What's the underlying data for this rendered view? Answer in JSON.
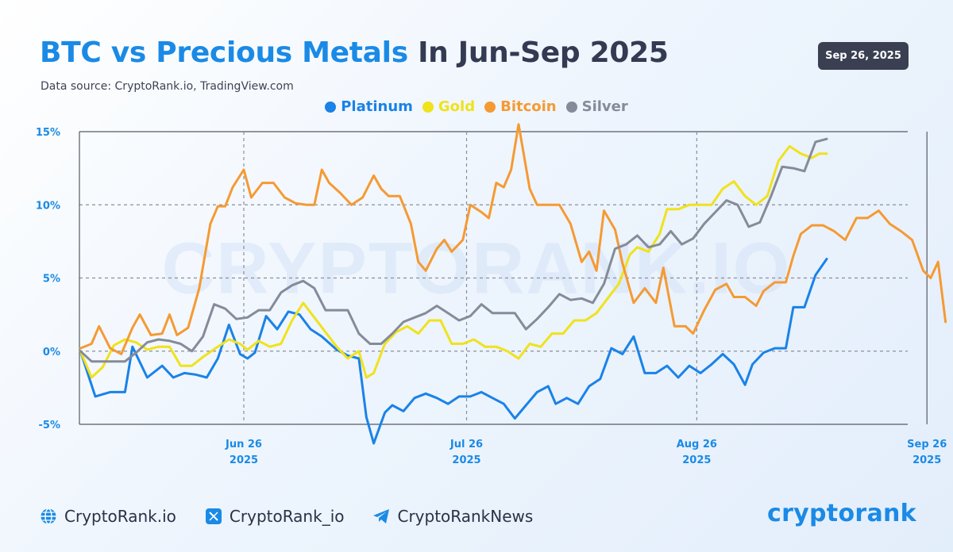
{
  "header": {
    "title_highlight": "BTC vs Precious Metals",
    "title_rest": " In Jun-Sep 2025",
    "subtitle": "Data source: CryptoRank.io, TradingView.com",
    "date_badge": "Sep 26, 2025"
  },
  "watermark": "CRYPTORANK.IO",
  "footer": {
    "website": "CryptoRank.io",
    "x_handle": "CryptoRank_io",
    "telegram": "CryptoRankNews",
    "brand": "cryptorank"
  },
  "chart_data": {
    "type": "line",
    "title": "BTC vs Precious Metals In Jun-Sep 2025",
    "xlabel": "",
    "ylabel": "",
    "ylim": [
      -5,
      15
    ],
    "x_ticks": [
      {
        "day": 0,
        "label_top": "Jun 26",
        "label_bottom": "2025"
      },
      {
        "day": 30,
        "label_top": "Jul 26",
        "label_bottom": "2025"
      },
      {
        "day": 61,
        "label_top": "Aug 26",
        "label_bottom": "2025"
      },
      {
        "day": 92,
        "label_top": "Sep 26",
        "label_bottom": "2025"
      }
    ],
    "y_ticks": [
      {
        "value": 15,
        "label": "15%"
      },
      {
        "value": 10,
        "label": "10%"
      },
      {
        "value": 5,
        "label": "5%"
      },
      {
        "value": 0,
        "label": "0%"
      },
      {
        "value": -5,
        "label": "-5%"
      }
    ],
    "grid": true,
    "legend": "top-center",
    "series": [
      {
        "name": "Platinum",
        "color": "#1a82e8",
        "points": [
          [
            -22,
            0
          ],
          [
            -20,
            -3.1
          ],
          [
            -18,
            -2.8
          ],
          [
            -16,
            -2.8
          ],
          [
            -15,
            0.3
          ],
          [
            -13,
            -1.8
          ],
          [
            -11,
            -1
          ],
          [
            -9.5,
            -1.8
          ],
          [
            -8,
            -1.5
          ],
          [
            -6.5,
            -1.6
          ],
          [
            -5,
            -1.8
          ],
          [
            -3.5,
            -0.5
          ],
          [
            -2,
            1.8
          ],
          [
            -0.5,
            -0.2
          ],
          [
            0.5,
            -0.5
          ],
          [
            1.5,
            -0.1
          ],
          [
            3,
            2.4
          ],
          [
            4.5,
            1.5
          ],
          [
            6,
            2.7
          ],
          [
            7.5,
            2.5
          ],
          [
            9,
            1.5
          ],
          [
            10.5,
            1
          ],
          [
            12.5,
            0.1
          ],
          [
            14,
            -0.3
          ],
          [
            15.5,
            -0.5
          ],
          [
            16.5,
            -4.5
          ],
          [
            17.5,
            -6.3
          ],
          [
            19,
            -4.2
          ],
          [
            20,
            -3.7
          ],
          [
            21.5,
            -4.1
          ],
          [
            23,
            -3.2
          ],
          [
            24.5,
            -2.9
          ],
          [
            26,
            -3.2
          ],
          [
            27.5,
            -3.6
          ],
          [
            29,
            -3.1
          ],
          [
            30.5,
            -3.1
          ],
          [
            32,
            -2.8
          ],
          [
            33.5,
            -3.2
          ],
          [
            35,
            -3.6
          ],
          [
            36.5,
            -4.6
          ],
          [
            38,
            -3.7
          ],
          [
            39.5,
            -2.8
          ],
          [
            41,
            -2.4
          ],
          [
            42,
            -3.6
          ],
          [
            43.5,
            -3.2
          ],
          [
            45,
            -3.6
          ],
          [
            46.5,
            -2.4
          ],
          [
            48,
            -1.9
          ],
          [
            49.5,
            0.2
          ],
          [
            51,
            -0.2
          ],
          [
            52.5,
            1
          ],
          [
            54,
            -1.5
          ],
          [
            55.5,
            -1.5
          ],
          [
            57,
            -1
          ],
          [
            58.5,
            -1.8
          ],
          [
            60,
            -1
          ],
          [
            61.5,
            -1.5
          ],
          [
            63,
            -0.9
          ],
          [
            64.5,
            -0.2
          ],
          [
            66,
            -0.9
          ],
          [
            67.5,
            -2.3
          ],
          [
            68.5,
            -0.9
          ],
          [
            70,
            -0.1
          ],
          [
            71.5,
            0.2
          ],
          [
            73,
            0.2
          ],
          [
            74,
            3
          ],
          [
            75.5,
            3
          ],
          [
            77,
            5.2
          ],
          [
            78.5,
            6.3
          ]
        ]
      },
      {
        "name": "Gold",
        "color": "#f0e21c",
        "points": [
          [
            -22,
            0
          ],
          [
            -20.5,
            -1.8
          ],
          [
            -19,
            -1.1
          ],
          [
            -17.5,
            0.4
          ],
          [
            -16,
            0.8
          ],
          [
            -14.5,
            0.6
          ],
          [
            -13,
            0.1
          ],
          [
            -11.5,
            0.3
          ],
          [
            -10,
            0.3
          ],
          [
            -8.5,
            -1
          ],
          [
            -7,
            -1
          ],
          [
            -5.5,
            -0.4
          ],
          [
            -3.5,
            0.3
          ],
          [
            -2,
            0.8
          ],
          [
            -0.5,
            0.5
          ],
          [
            0.5,
            0.1
          ],
          [
            2,
            0.7
          ],
          [
            3.5,
            0.3
          ],
          [
            5,
            0.5
          ],
          [
            6.5,
            2.1
          ],
          [
            8,
            3.3
          ],
          [
            9.5,
            2.3
          ],
          [
            11,
            1.3
          ],
          [
            12.5,
            0.3
          ],
          [
            14,
            -0.5
          ],
          [
            15.5,
            0
          ],
          [
            16.5,
            -1.8
          ],
          [
            17.5,
            -1.5
          ],
          [
            19,
            0.5
          ],
          [
            20.5,
            1.3
          ],
          [
            22,
            1.7
          ],
          [
            23.5,
            1.2
          ],
          [
            25,
            2.1
          ],
          [
            26.5,
            2.1
          ],
          [
            28,
            0.5
          ],
          [
            29.5,
            0.5
          ],
          [
            31,
            0.8
          ],
          [
            32.5,
            0.3
          ],
          [
            34,
            0.3
          ],
          [
            35.5,
            0
          ],
          [
            37,
            -0.5
          ],
          [
            38.5,
            0.5
          ],
          [
            40,
            0.3
          ],
          [
            41.5,
            1.2
          ],
          [
            43,
            1.2
          ],
          [
            44.5,
            2.1
          ],
          [
            46,
            2.1
          ],
          [
            47.5,
            2.6
          ],
          [
            49,
            3.6
          ],
          [
            50.5,
            4.6
          ],
          [
            52,
            6.6
          ],
          [
            53,
            7.1
          ],
          [
            54.5,
            6.8
          ],
          [
            56,
            8
          ],
          [
            57,
            9.7
          ],
          [
            58.5,
            9.7
          ],
          [
            60,
            10
          ],
          [
            61.5,
            10
          ],
          [
            63,
            10
          ],
          [
            64.5,
            11.1
          ],
          [
            66,
            11.6
          ],
          [
            67.5,
            10.6
          ],
          [
            69,
            10
          ],
          [
            70.5,
            10.6
          ],
          [
            72,
            13
          ],
          [
            73.5,
            14
          ],
          [
            75,
            13.5
          ],
          [
            76.5,
            13.2
          ],
          [
            77.5,
            13.5
          ],
          [
            78.5,
            13.5
          ]
        ]
      },
      {
        "name": "Bitcoin",
        "color": "#f59a33",
        "points": [
          [
            -22,
            0.2
          ],
          [
            -20.5,
            0.5
          ],
          [
            -19.5,
            1.7
          ],
          [
            -18,
            0.2
          ],
          [
            -16.5,
            -0.2
          ],
          [
            -15,
            1.6
          ],
          [
            -14,
            2.5
          ],
          [
            -12.5,
            1.1
          ],
          [
            -11,
            1.2
          ],
          [
            -10,
            2.5
          ],
          [
            -9,
            1.1
          ],
          [
            -7.5,
            1.6
          ],
          [
            -6,
            4.3
          ],
          [
            -4.5,
            8.7
          ],
          [
            -3.5,
            9.9
          ],
          [
            -2.5,
            9.9
          ],
          [
            -1.5,
            11.2
          ],
          [
            0,
            12.4
          ],
          [
            1,
            10.5
          ],
          [
            2.5,
            11.5
          ],
          [
            4,
            11.5
          ],
          [
            5.5,
            10.5
          ],
          [
            7,
            10.1
          ],
          [
            8.5,
            10
          ],
          [
            9.5,
            10
          ],
          [
            10.5,
            12.4
          ],
          [
            11.5,
            11.5
          ],
          [
            13,
            10.8
          ],
          [
            14.5,
            10
          ],
          [
            16,
            10.5
          ],
          [
            17.5,
            12
          ],
          [
            18.5,
            11.1
          ],
          [
            19.5,
            10.6
          ],
          [
            21,
            10.6
          ],
          [
            22.5,
            8.7
          ],
          [
            23.5,
            6.1
          ],
          [
            24.5,
            5.5
          ],
          [
            26,
            7
          ],
          [
            27,
            7.6
          ],
          [
            28,
            6.8
          ],
          [
            29.5,
            7.6
          ],
          [
            30.5,
            10
          ],
          [
            32,
            9.5
          ],
          [
            33,
            9.1
          ],
          [
            34,
            11.5
          ],
          [
            35,
            11.2
          ],
          [
            36,
            12.4
          ],
          [
            37,
            15.5
          ],
          [
            38.5,
            11.1
          ],
          [
            39.5,
            10
          ],
          [
            41,
            10
          ],
          [
            42.5,
            10
          ],
          [
            44,
            8.7
          ],
          [
            45.5,
            6.1
          ],
          [
            46.5,
            6.8
          ],
          [
            47.5,
            5.5
          ],
          [
            48.5,
            9.6
          ],
          [
            50,
            8.3
          ],
          [
            51,
            6
          ],
          [
            52.5,
            3.3
          ],
          [
            54,
            4.3
          ],
          [
            55.5,
            3.3
          ],
          [
            56.5,
            5.7
          ],
          [
            58,
            1.7
          ],
          [
            59.5,
            1.7
          ],
          [
            60.5,
            1.2
          ],
          [
            62,
            2.8
          ],
          [
            63.5,
            4.2
          ],
          [
            65,
            4.6
          ],
          [
            66,
            3.7
          ],
          [
            67.5,
            3.7
          ],
          [
            69,
            3.1
          ],
          [
            70,
            4.1
          ],
          [
            71.5,
            4.7
          ],
          [
            73,
            4.7
          ],
          [
            74,
            6.5
          ],
          [
            75,
            8
          ],
          [
            76.5,
            8.6
          ],
          [
            78,
            8.6
          ],
          [
            79.5,
            8.2
          ],
          [
            81,
            7.6
          ],
          [
            82.5,
            9.1
          ],
          [
            84,
            9.1
          ],
          [
            85.5,
            9.6
          ],
          [
            87,
            8.7
          ],
          [
            88.5,
            8.2
          ],
          [
            90,
            7.6
          ],
          [
            91.5,
            5.5
          ],
          [
            92.5,
            5
          ],
          [
            93.5,
            6.1
          ],
          [
            94.5,
            2
          ]
        ]
      },
      {
        "name": "Silver",
        "color": "#858b99",
        "points": [
          [
            -22,
            0
          ],
          [
            -20.5,
            -0.7
          ],
          [
            -19,
            -0.7
          ],
          [
            -17.5,
            -0.7
          ],
          [
            -16,
            -0.7
          ],
          [
            -14.5,
            -0.1
          ],
          [
            -13,
            0.6
          ],
          [
            -11.5,
            0.8
          ],
          [
            -10,
            0.7
          ],
          [
            -8.5,
            0.5
          ],
          [
            -7,
            0
          ],
          [
            -5.5,
            1
          ],
          [
            -4,
            3.2
          ],
          [
            -2.5,
            2.9
          ],
          [
            -1,
            2.2
          ],
          [
            0.5,
            2.3
          ],
          [
            2,
            2.8
          ],
          [
            3.5,
            2.8
          ],
          [
            5,
            4
          ],
          [
            6.5,
            4.5
          ],
          [
            8,
            4.8
          ],
          [
            9.5,
            4.3
          ],
          [
            11,
            2.8
          ],
          [
            12.5,
            2.8
          ],
          [
            14,
            2.8
          ],
          [
            15.5,
            1.2
          ],
          [
            17,
            0.5
          ],
          [
            18.5,
            0.5
          ],
          [
            20,
            1.2
          ],
          [
            21.5,
            2
          ],
          [
            23,
            2.3
          ],
          [
            24.5,
            2.6
          ],
          [
            26,
            3.1
          ],
          [
            27.5,
            2.6
          ],
          [
            29,
            2.1
          ],
          [
            30.5,
            2.4
          ],
          [
            32,
            3.2
          ],
          [
            33.5,
            2.6
          ],
          [
            35,
            2.6
          ],
          [
            36.5,
            2.6
          ],
          [
            38,
            1.5
          ],
          [
            39.5,
            2.2
          ],
          [
            41,
            3
          ],
          [
            42.5,
            3.9
          ],
          [
            44,
            3.5
          ],
          [
            45.5,
            3.6
          ],
          [
            47,
            3.3
          ],
          [
            48.5,
            4.6
          ],
          [
            50,
            7
          ],
          [
            51.5,
            7.3
          ],
          [
            53,
            7.9
          ],
          [
            54.5,
            7.1
          ],
          [
            56,
            7.3
          ],
          [
            57.5,
            8.2
          ],
          [
            59,
            7.3
          ],
          [
            60.5,
            7.7
          ],
          [
            62,
            8.7
          ],
          [
            63.5,
            9.5
          ],
          [
            65,
            10.3
          ],
          [
            66.5,
            10
          ],
          [
            68,
            8.5
          ],
          [
            69.5,
            8.8
          ],
          [
            71,
            10.6
          ],
          [
            72.5,
            12.6
          ],
          [
            74,
            12.5
          ],
          [
            75.5,
            12.3
          ],
          [
            77,
            14.3
          ],
          [
            78.5,
            14.5
          ]
        ]
      }
    ]
  }
}
